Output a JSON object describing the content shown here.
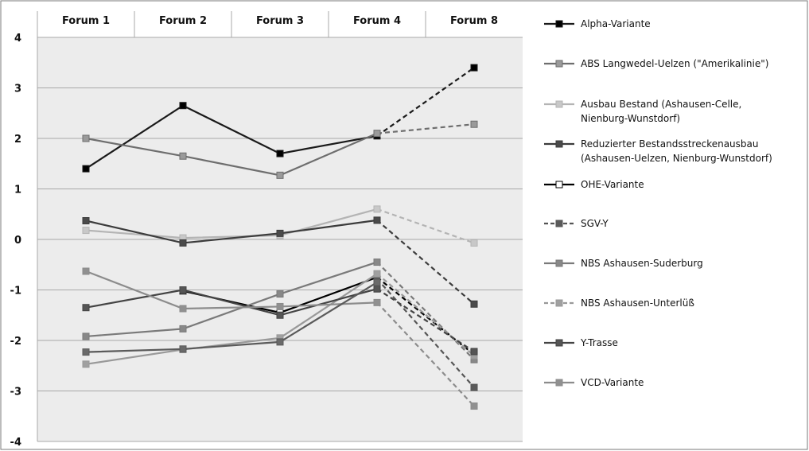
{
  "chart_data": {
    "type": "line",
    "title": "",
    "xlabel": "",
    "ylabel": "",
    "x_position": "top",
    "categories": [
      "Forum 1",
      "Forum 2",
      "Forum 3",
      "Forum 4",
      "Forum 8"
    ],
    "ylim": [
      -4,
      4
    ],
    "y_ticks": [
      4,
      3,
      2,
      1,
      0,
      -1,
      -2,
      -3,
      -4
    ],
    "grid": true,
    "legend_position": "right",
    "series": [
      {
        "name": "Alpha-Variante",
        "color": "#1a1a1a",
        "marker_fill": "#000000",
        "values": [
          1.4,
          2.65,
          1.7,
          2.05,
          null
        ],
        "dashed_values": [
          null,
          null,
          null,
          2.05,
          3.4
        ]
      },
      {
        "name": "ABS Langwedel-Uelzen (\"Amerikalinie\")",
        "color": "#6e6e6e",
        "marker_fill": "#9a9a9a",
        "values": [
          2.0,
          1.65,
          1.27,
          2.1,
          null
        ],
        "dashed_values": [
          null,
          null,
          null,
          2.1,
          2.28
        ]
      },
      {
        "name": "Ausbau Bestand (Ashausen-Celle, Nienburg-Wunstdorf)",
        "color": "#b4b4b4",
        "marker_fill": "#c8c8c8",
        "values": [
          0.18,
          0.03,
          0.08,
          0.6,
          null
        ],
        "dashed_values": [
          null,
          null,
          null,
          0.6,
          -0.07
        ]
      },
      {
        "name": "Reduzierter Bestandsstreckenausbau (Ashausen-Uelzen, Nienburg-Wunstdorf)",
        "color": "#3c3c3c",
        "marker_fill": "#4a4a4a",
        "values": [
          0.37,
          -0.07,
          0.12,
          0.38,
          null
        ],
        "dashed_values": [
          null,
          null,
          null,
          0.38,
          -1.28
        ]
      },
      {
        "name": "OHE-Variante",
        "color": "#000000",
        "marker_fill": "#ffffff",
        "values": [
          null,
          -1.02,
          -1.45,
          -0.75,
          null
        ],
        "dashed_values": [
          null,
          null,
          null,
          -0.75,
          -2.28
        ]
      },
      {
        "name": "SGV-Y",
        "color": "#555555",
        "marker_fill": "#5a5a5a",
        "values": [
          null,
          null,
          null,
          -0.78,
          null
        ],
        "dashed_values": [
          null,
          null,
          null,
          -0.78,
          -2.93
        ]
      },
      {
        "name": "NBS Ashausen-Suderburg",
        "color": "#7a7a7a",
        "marker_fill": "#888888",
        "values": [
          -1.92,
          -1.77,
          -1.08,
          -0.45,
          null
        ],
        "dashed_values": [
          null,
          null,
          null,
          -0.45,
          -2.38
        ]
      },
      {
        "name": "NBS Ashausen-Unterlüß",
        "color": "#999999",
        "marker_fill": "#a0a0a0",
        "values": [
          -2.47,
          -2.18,
          -1.95,
          -0.68,
          null
        ],
        "dashed_values": [
          null,
          null,
          null,
          -0.68,
          -2.3
        ]
      },
      {
        "name": "Y-Trasse",
        "color": "#444444",
        "marker_fill": "#555555",
        "values": [
          -1.35,
          -1.0,
          -1.5,
          -0.98,
          null
        ],
        "dashed_values": [
          null,
          null,
          null,
          -0.98,
          -2.22
        ]
      },
      {
        "name": "VCD-Variante",
        "color": "#8c8c8c",
        "marker_fill": "#909090",
        "values": [
          -0.63,
          -1.37,
          -1.33,
          -1.25,
          null
        ],
        "dashed_values": [
          null,
          null,
          null,
          -1.25,
          -3.3
        ]
      },
      {
        "name": "",
        "color": "#5a5a5a",
        "marker_fill": "#6a6a6a",
        "values": [
          -2.23,
          -2.17,
          -2.03,
          -0.85,
          null
        ],
        "dashed_values": [
          null,
          null,
          null,
          null,
          null
        ]
      }
    ]
  }
}
